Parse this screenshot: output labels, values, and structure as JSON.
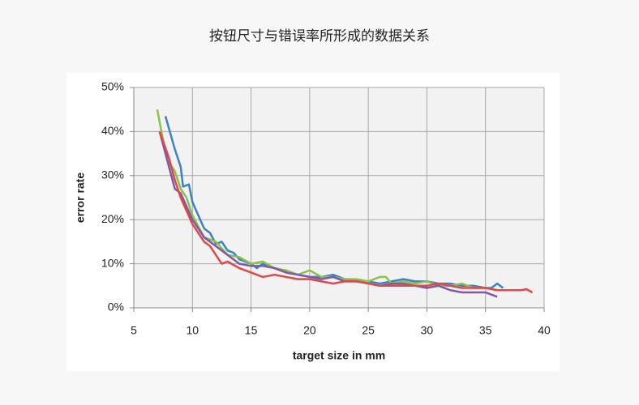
{
  "chart_data": {
    "type": "line",
    "title": "按钮尺寸与错误率所形成的数据关系",
    "xlabel": "target size in mm",
    "ylabel": "error rate",
    "xlim": [
      5,
      40
    ],
    "xticks": [
      5,
      10,
      15,
      20,
      25,
      30,
      35,
      40
    ],
    "ylim": [
      0,
      50
    ],
    "yticks": [
      {
        "value": 0,
        "label": "0%"
      },
      {
        "value": 10,
        "label": "10%"
      },
      {
        "value": 20,
        "label": "20%"
      },
      {
        "value": 30,
        "label": "30%"
      },
      {
        "value": 40,
        "label": "40%"
      },
      {
        "value": 50,
        "label": "50%"
      }
    ],
    "grid": true,
    "series": [
      {
        "color": "#3a82c4",
        "x": [
          7.7,
          8.5,
          9,
          9.2,
          9.7,
          10,
          10.5,
          11,
          11.5,
          12,
          12.5,
          13,
          13.5,
          14,
          15,
          15.5,
          16,
          17,
          18,
          19,
          20,
          21,
          22,
          23,
          24,
          25,
          26,
          27,
          28,
          29,
          30,
          31,
          32,
          33,
          34,
          35,
          35.5,
          36,
          36.5
        ],
        "values": [
          43.5,
          36,
          32,
          27.5,
          28,
          24,
          21,
          18,
          17,
          14.5,
          15,
          13,
          12.5,
          11,
          10,
          9,
          10,
          9,
          8,
          7.5,
          7,
          7,
          7.5,
          6.5,
          6,
          6,
          5.5,
          6,
          6.5,
          6,
          6,
          5.5,
          5.5,
          5,
          5,
          4.5,
          4.5,
          5.5,
          4.5
        ]
      },
      {
        "color": "#8cc04a",
        "x": [
          7,
          7.5,
          8,
          8.5,
          9,
          9.5,
          10,
          11,
          12,
          13,
          14,
          15,
          16,
          17,
          18,
          19,
          20,
          21,
          22,
          23,
          24,
          25,
          26,
          26.5,
          27,
          28,
          29,
          30,
          31,
          32,
          33,
          34,
          35,
          36
        ],
        "values": [
          45,
          38,
          33,
          31,
          27,
          25,
          21,
          16,
          15,
          12,
          11.5,
          10,
          10.5,
          9,
          8.5,
          7.5,
          8.5,
          7,
          7,
          6.5,
          6.5,
          6,
          7,
          7,
          5.5,
          6,
          5.5,
          6,
          5,
          5,
          5.5,
          4.5,
          4.5,
          4
        ]
      },
      {
        "color": "#7e5aa6",
        "x": [
          7.2,
          7.7,
          8.5,
          9,
          10,
          11,
          12,
          13,
          14,
          15,
          16,
          17,
          18,
          19,
          20,
          21,
          22,
          23,
          24,
          25,
          26,
          27,
          28,
          29,
          30,
          31,
          32,
          33,
          34,
          35,
          36
        ],
        "values": [
          40,
          35,
          27,
          26,
          20,
          16,
          14,
          12,
          10,
          9.5,
          9.5,
          9,
          8,
          7.5,
          7,
          6.5,
          7,
          6,
          6,
          5.5,
          5,
          5.5,
          5.5,
          5,
          4.5,
          5,
          4,
          3.5,
          3.5,
          3.5,
          2.5
        ]
      },
      {
        "color": "#e04747",
        "x": [
          7.2,
          8,
          8.5,
          9,
          9.5,
          10,
          10.5,
          11,
          11.5,
          12,
          12.5,
          13,
          14,
          15,
          16,
          17,
          18,
          19,
          20,
          21,
          22,
          23,
          24,
          25,
          26,
          27,
          28,
          29,
          30,
          31,
          32,
          33,
          34,
          35,
          36,
          37,
          38,
          38.5,
          39
        ],
        "values": [
          40,
          34,
          29,
          25,
          22,
          19,
          17,
          15,
          14,
          12,
          10,
          10.5,
          9,
          8,
          7,
          7.5,
          7,
          6.5,
          6.5,
          6,
          5.5,
          6,
          6,
          5.5,
          5,
          5,
          5,
          5,
          5,
          5.5,
          5,
          4.5,
          4.5,
          4.5,
          4,
          4,
          4,
          4.2,
          3.5
        ]
      }
    ]
  }
}
